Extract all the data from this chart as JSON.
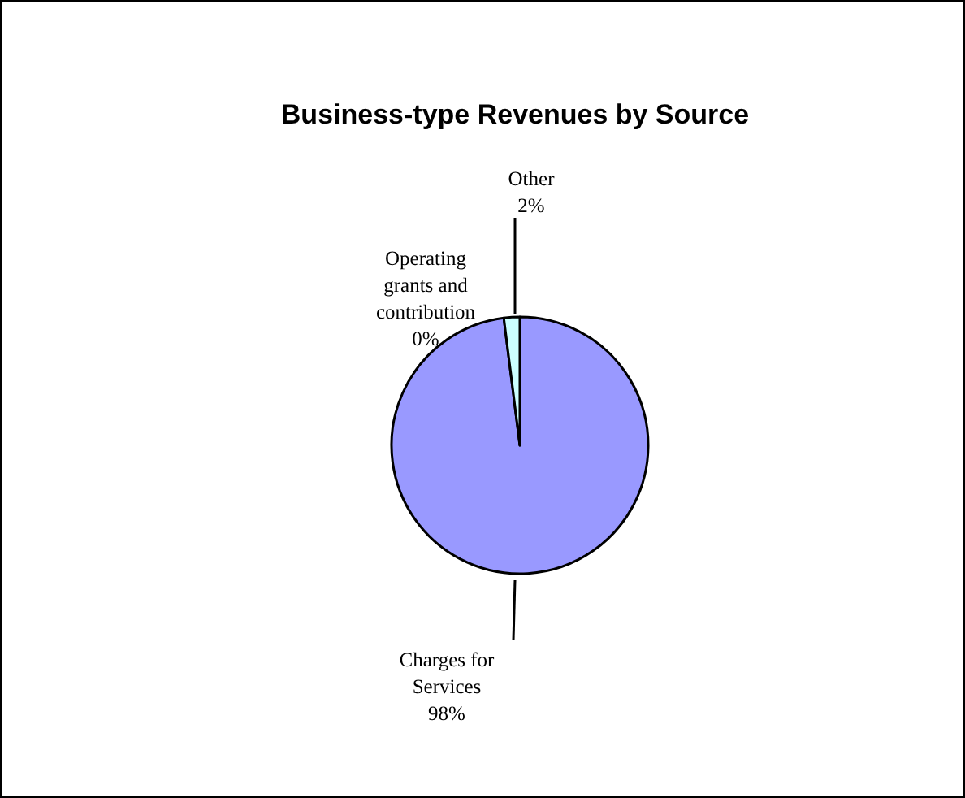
{
  "chart_data": {
    "type": "pie",
    "title": "Business-type Revenues by Source",
    "categories": [
      "Charges for Services",
      "Operating grants and contribution",
      "Other"
    ],
    "values": [
      98,
      0,
      2
    ],
    "colors": [
      "#9999ff",
      null,
      "#ccffff"
    ],
    "value_labels": [
      "98%",
      "0%",
      "2%"
    ]
  }
}
